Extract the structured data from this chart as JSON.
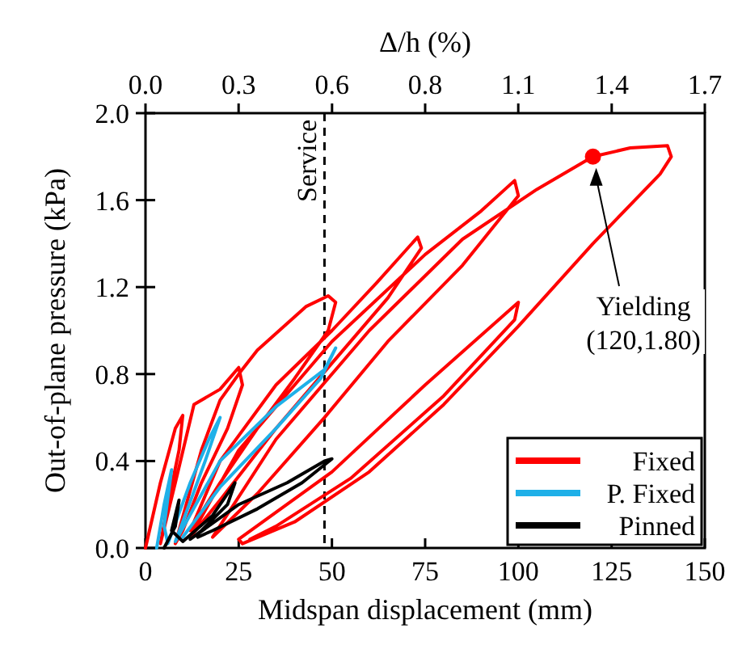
{
  "chart_data": {
    "type": "line",
    "xlabel": "Midspan displacement (mm)",
    "ylabel": "Out-of-plane pressure (kPa)",
    "x2label": "Δ/h (%)",
    "xlim": [
      0,
      150
    ],
    "xticks": [
      0,
      25,
      50,
      75,
      100,
      125,
      150
    ],
    "ylim": [
      0,
      2.0
    ],
    "yticks": [
      {
        "value": 0,
        "label": "0.0"
      },
      0.4,
      0.8,
      1.2,
      1.6,
      {
        "value": 2,
        "label": "2.0"
      }
    ],
    "x2lim": [
      0,
      1.7
    ],
    "x2ticks": [
      {
        "value": 0,
        "label": "0.0"
      },
      {
        "value": 0.283,
        "label": "0.3"
      },
      {
        "value": 0.567,
        "label": "0.6"
      },
      {
        "value": 0.85,
        "label": "0.8"
      },
      {
        "value": 1.133,
        "label": "1.1"
      },
      {
        "value": 1.417,
        "label": "1.4"
      },
      1.7
    ],
    "grid": false,
    "legend": "bottom right",
    "marker": "none",
    "line_style": "solid",
    "ref_lines": [
      {
        "axis": "x",
        "value": 48,
        "label": "Service",
        "color": "#000000",
        "line_style": "dashed"
      }
    ],
    "annotations": [
      "Yielding (120,1.80)"
    ],
    "series": [
      {
        "name": "Fixed",
        "color": "#ff0000",
        "x": [
          0,
          4,
          8,
          10,
          9,
          6,
          4,
          8,
          13,
          20,
          25,
          26,
          22,
          15,
          10,
          8,
          15,
          20,
          25,
          30,
          43,
          49,
          51,
          49,
          40,
          30,
          20,
          12,
          20,
          35,
          50,
          62,
          73,
          74,
          65,
          50,
          35,
          20,
          12,
          25,
          50,
          75,
          90,
          99,
          100,
          85,
          65,
          48,
          30,
          18,
          35,
          60,
          85,
          105,
          120,
          130,
          140,
          141,
          138,
          120,
          100,
          80,
          60,
          40,
          26,
          25,
          50,
          75,
          100,
          99,
          80,
          55,
          35,
          28
        ],
        "values": [
          0,
          0.3,
          0.55,
          0.61,
          0.45,
          0.2,
          0.02,
          0.3,
          0.66,
          0.73,
          0.83,
          0.75,
          0.55,
          0.3,
          0.08,
          0.02,
          0.45,
          0.68,
          0.8,
          0.91,
          1.11,
          1.16,
          1.13,
          1.0,
          0.78,
          0.55,
          0.3,
          0.08,
          0.4,
          0.75,
          1.0,
          1.22,
          1.43,
          1.38,
          1.15,
          0.85,
          0.55,
          0.22,
          0.05,
          0.45,
          0.95,
          1.35,
          1.55,
          1.69,
          1.62,
          1.3,
          0.95,
          0.6,
          0.25,
          0.05,
          0.5,
          1.0,
          1.42,
          1.65,
          1.8,
          1.84,
          1.85,
          1.8,
          1.72,
          1.4,
          1.02,
          0.66,
          0.35,
          0.12,
          0.02,
          0.04,
          0.35,
          0.75,
          1.13,
          1.05,
          0.7,
          0.32,
          0.1,
          0.04
        ]
      },
      {
        "name": "P. Fixed",
        "color": "#1fb0e8",
        "x": [
          3,
          5,
          7,
          5,
          6,
          12,
          17,
          20,
          16,
          10,
          8,
          20,
          35,
          48,
          51,
          47,
          35,
          20,
          10
        ],
        "values": [
          0,
          0.2,
          0.36,
          0.1,
          0.02,
          0.3,
          0.5,
          0.6,
          0.4,
          0.12,
          0.03,
          0.4,
          0.65,
          0.82,
          0.92,
          0.78,
          0.55,
          0.28,
          0.05
        ]
      },
      {
        "name": "Pinned",
        "color": "#000000",
        "x": [
          5,
          8,
          9,
          7,
          10,
          18,
          24,
          22,
          15,
          12,
          25,
          38,
          48,
          50,
          42,
          30,
          18,
          14
        ],
        "values": [
          0,
          0.1,
          0.22,
          0.08,
          0.03,
          0.15,
          0.3,
          0.2,
          0.08,
          0.04,
          0.2,
          0.3,
          0.4,
          0.41,
          0.3,
          0.18,
          0.08,
          0.05
        ]
      },
      {
        "type": "scatter",
        "color": "#ff0000",
        "marker": "circle",
        "x": [
          120
        ],
        "values": [
          1.8
        ]
      }
    ]
  }
}
